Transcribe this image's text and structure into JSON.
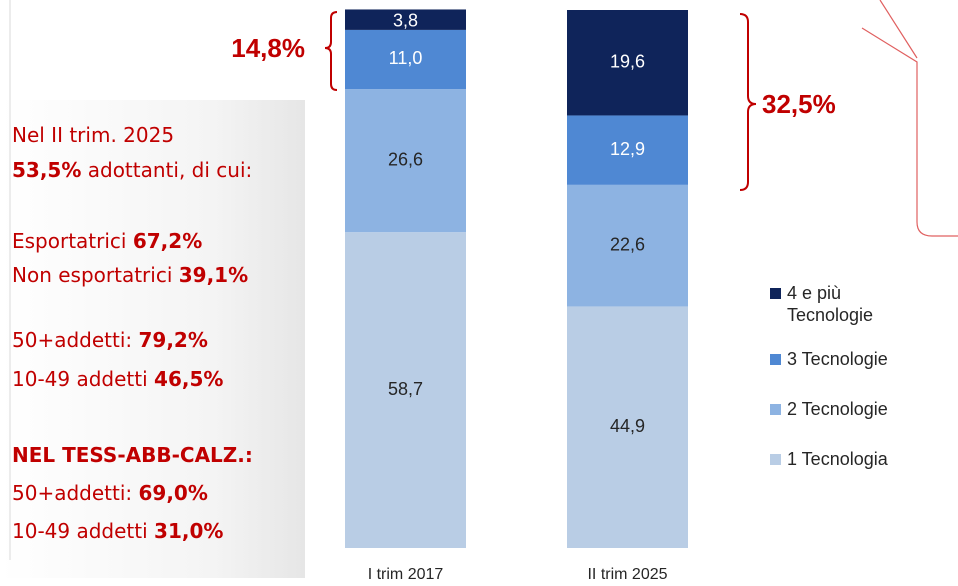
{
  "chart_data": {
    "type": "stacked_bar",
    "categories": [
      "I trim 2017",
      "II trim 2025"
    ],
    "ylim": [
      0,
      100
    ],
    "series": [
      {
        "name": "1 Tecnologia",
        "color": "#b9cde5",
        "label_color": "#262626",
        "values": [
          58.7,
          44.9
        ],
        "value_labels": [
          "58,7",
          "44,9"
        ]
      },
      {
        "name": "2 Tecnologie",
        "color": "#8db3e2",
        "label_color": "#262626",
        "values": [
          26.6,
          22.6
        ],
        "value_labels": [
          "26,6",
          "22,6"
        ]
      },
      {
        "name": "3 Tecnologie",
        "color": "#4f88d3",
        "label_color": "#ffffff",
        "values": [
          11.0,
          12.9
        ],
        "value_labels": [
          "11,0",
          "12,9"
        ]
      },
      {
        "name": "4 e più Tecnologie",
        "color": "#0f245a",
        "label_color": "#ffffff",
        "values": [
          3.8,
          19.6
        ],
        "value_labels": [
          "3,8",
          "19,6"
        ]
      }
    ],
    "annotations": [
      "14,8%",
      "32,5%"
    ],
    "annotation_color": "#c00000",
    "notes": [
      [
        {
          "text": "Nel II trim. 2025",
          "bold": false
        }
      ],
      [
        {
          "text": "53,5%",
          "bold": true
        },
        {
          "text": " adottanti, di cui:",
          "bold": false
        }
      ],
      [
        {
          "text": "Esportatrici ",
          "bold": false
        },
        {
          "text": "67,2%",
          "bold": true
        }
      ],
      [
        {
          "text": "Non esportatrici ",
          "bold": false
        },
        {
          "text": "39,1%",
          "bold": true
        }
      ],
      [
        {
          "text": "50+addetti: ",
          "bold": false
        },
        {
          "text": "79,2%",
          "bold": true
        }
      ],
      [
        {
          "text": "10-49 addetti ",
          "bold": false
        },
        {
          "text": "46,5%",
          "bold": true
        }
      ],
      [
        {
          "text": "NEL TESS-ABB-CALZ.:",
          "bold": true
        }
      ],
      [
        {
          "text": "50+addetti: ",
          "bold": false
        },
        {
          "text": "69,0%",
          "bold": true
        }
      ],
      [
        {
          "text": "10-49 addetti ",
          "bold": false
        },
        {
          "text": "31,0%",
          "bold": true
        }
      ]
    ]
  }
}
